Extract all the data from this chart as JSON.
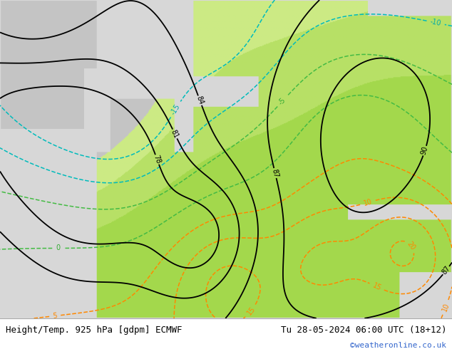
{
  "title_left": "Height/Temp. 925 hPa [gdpm] ECMWF",
  "title_right": "Tu 28-05-2024 06:00 UTC (18+12)",
  "credit": "©weatheronline.co.uk",
  "fig_width": 6.34,
  "fig_height": 4.9,
  "dpi": 100,
  "title_fontsize": 9,
  "credit_color": "#3366cc",
  "credit_fontsize": 8,
  "map_bg": "#d0d0d0",
  "land_green_light": "#c8e88a",
  "land_green_mid": "#aad450",
  "land_green_bright": "#90cc30",
  "land_grey": "#c0c0c0",
  "sea_grey": "#d8d8d8",
  "contour_black_lw": 1.3,
  "contour_temp_lw": 1.1
}
